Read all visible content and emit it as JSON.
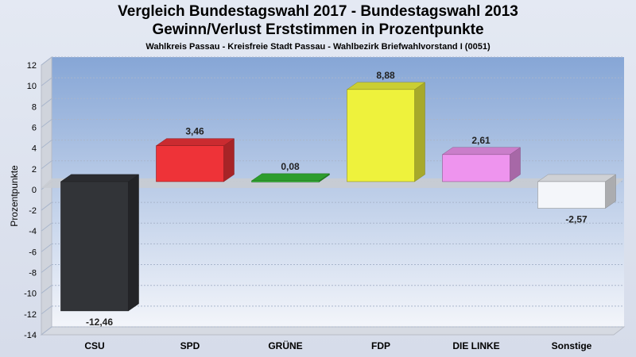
{
  "chart_data": {
    "type": "bar",
    "title": "Vergleich Bundestagswahl 2017 - Bundestagswahl 2013",
    "subtitle": "Gewinn/Verlust Erststimmen in Prozentpunkte",
    "caption": "Wahlkreis Passau - Kreisfreie Stadt Passau - Wahlbezirk Briefwahlvorstand I (0051)",
    "ylabel": "Prozentpunkte",
    "xlabel": "",
    "ylim": [
      -14,
      12
    ],
    "yticks": [
      12,
      10,
      8,
      6,
      4,
      2,
      0,
      -2,
      -4,
      -6,
      -8,
      -10,
      -12,
      -14
    ],
    "categories": [
      "CSU",
      "SPD",
      "GRÜNE",
      "FDP",
      "DIE LINKE",
      "Sonstige"
    ],
    "values": [
      -12.46,
      3.46,
      0.08,
      8.88,
      2.61,
      -2.57
    ],
    "value_labels": [
      "-12,46",
      "3,46",
      "0,08",
      "8,88",
      "2,61",
      "-2,57"
    ],
    "colors": [
      "#323438",
      "#ee3338",
      "#35b935",
      "#eef23c",
      "#ee94ee",
      "#f4f6fa"
    ],
    "grid": true,
    "legend": "none"
  }
}
